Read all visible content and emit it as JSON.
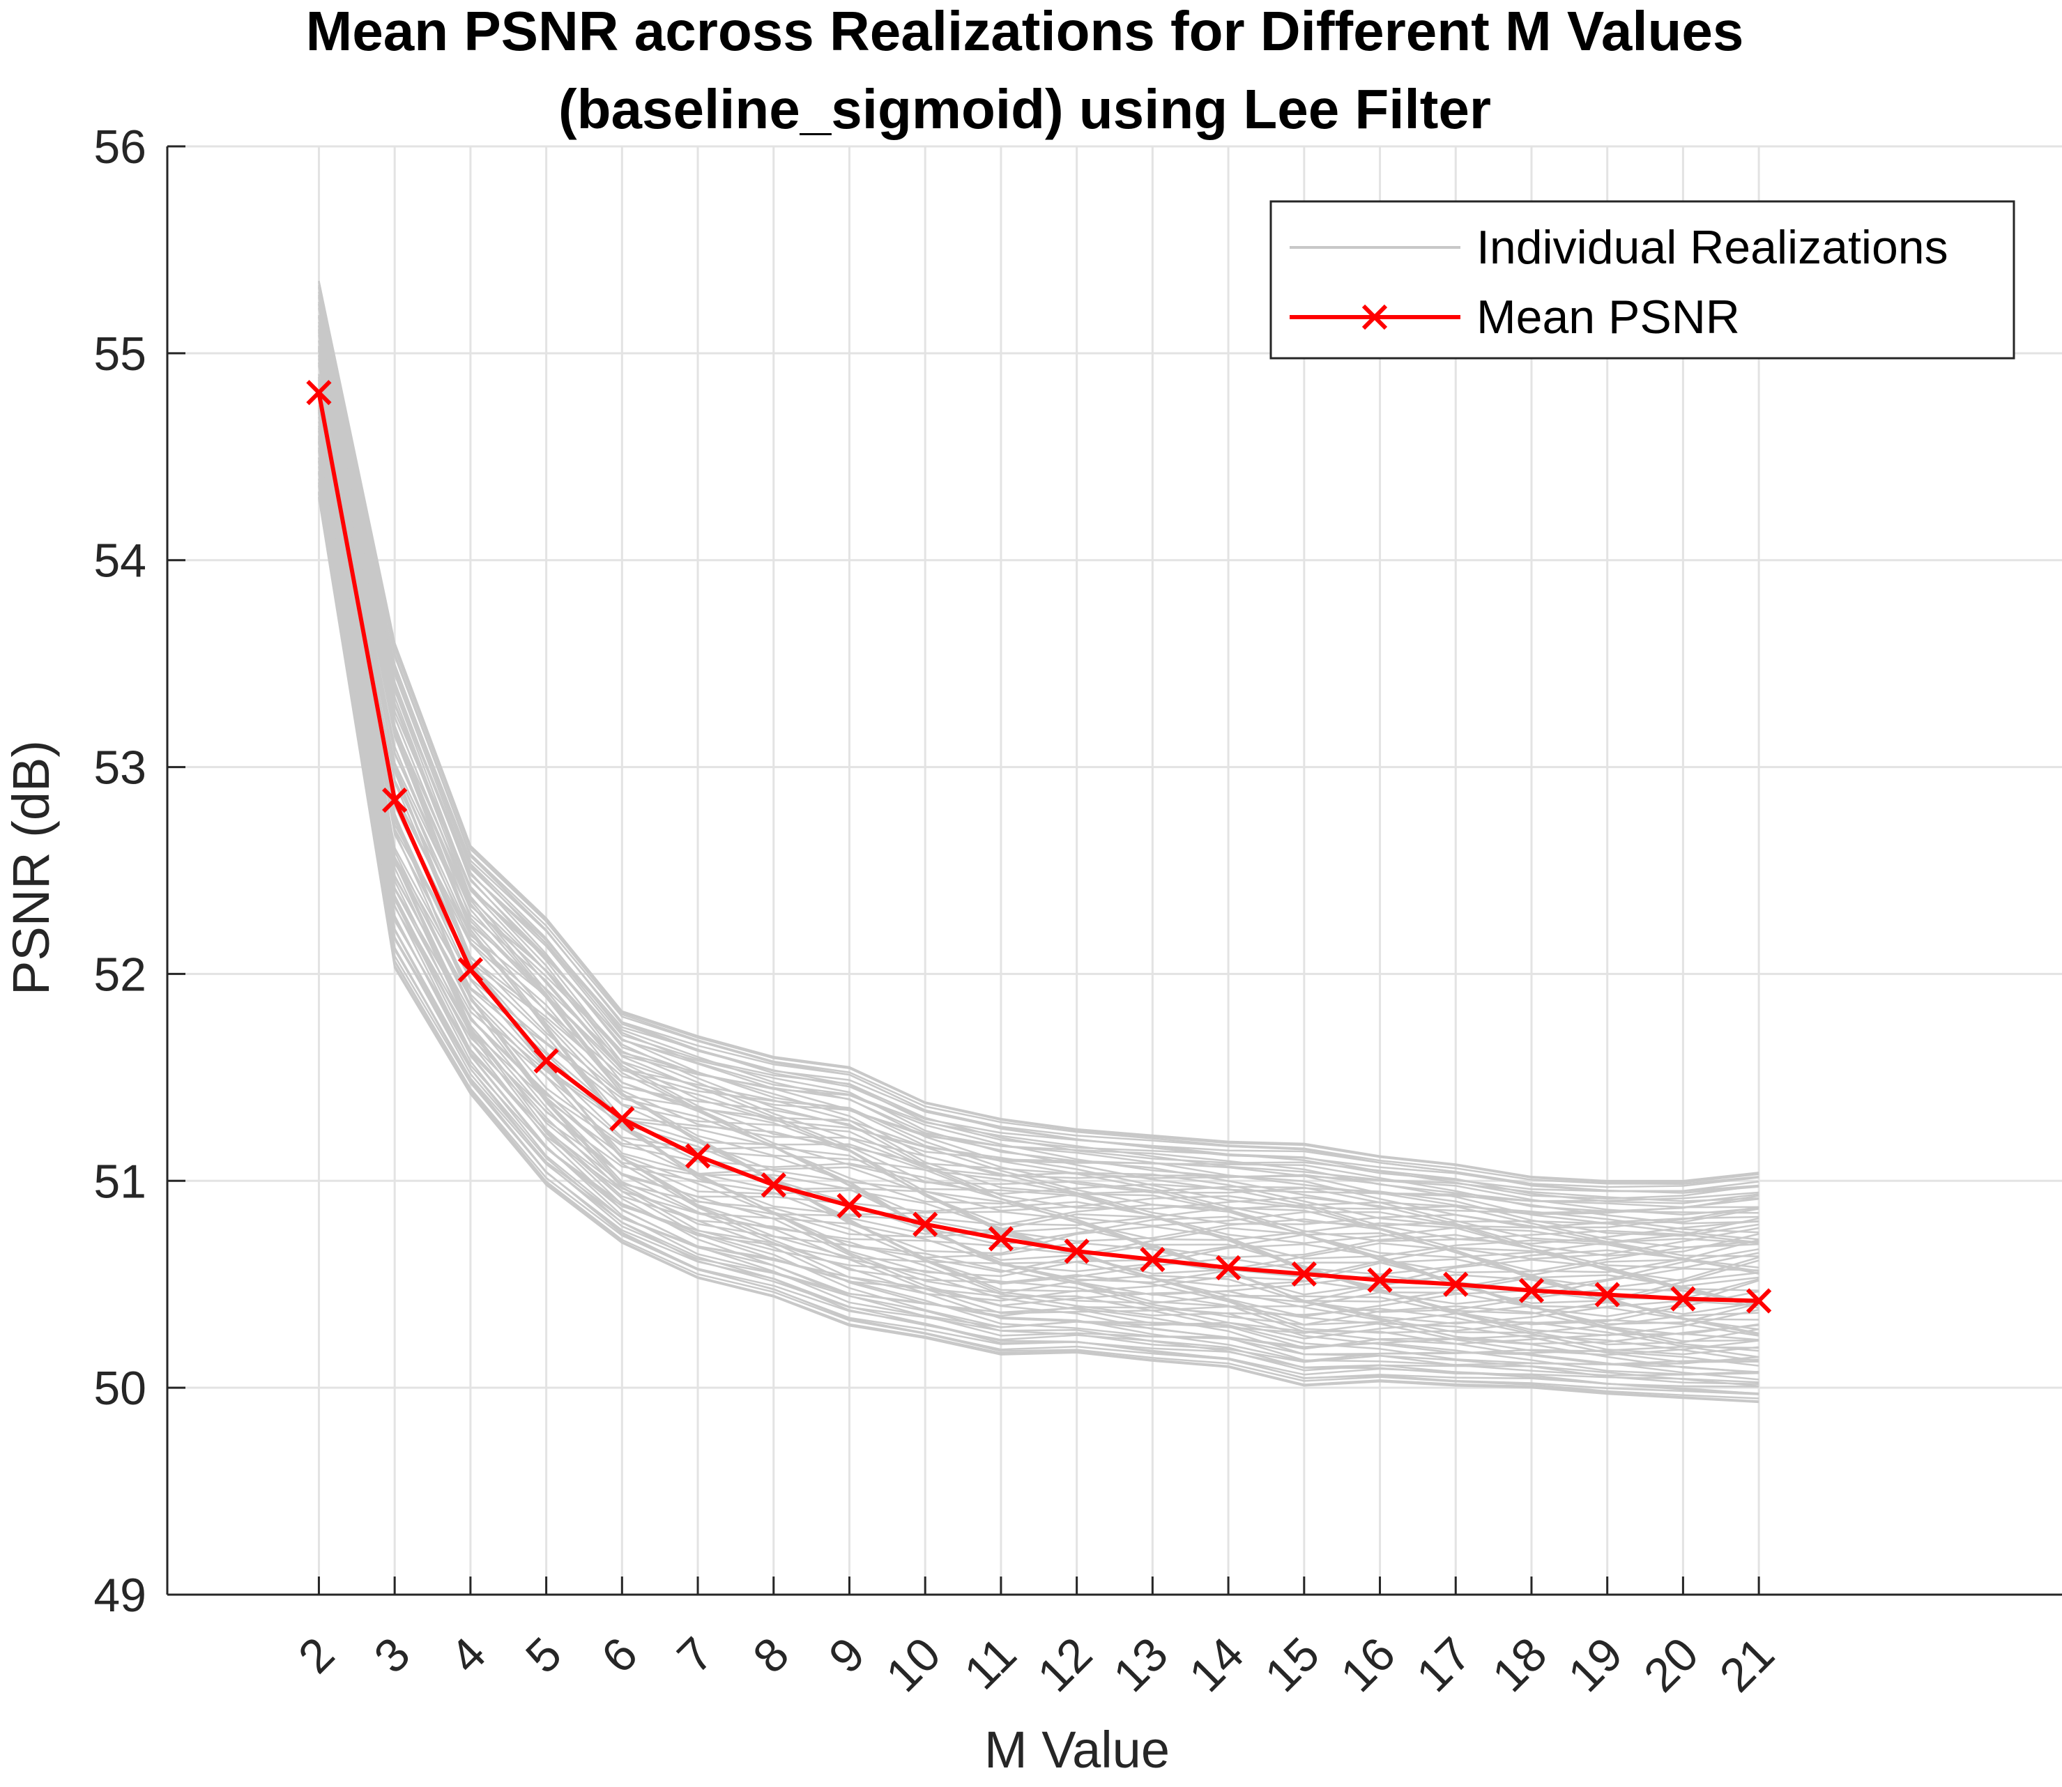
{
  "chart_data": {
    "type": "line",
    "title": [
      "Mean PSNR across Realizations for Different M Values",
      "(baseline_sigmoid) using Lee Filter"
    ],
    "xlabel": "M Value",
    "ylabel": "PSNR (dB)",
    "x": [
      2,
      3,
      4,
      5,
      6,
      7,
      8,
      9,
      10,
      11,
      12,
      13,
      14,
      15,
      16,
      17,
      18,
      19,
      20,
      21
    ],
    "x_tick_labels": [
      "2",
      "3",
      "4",
      "5",
      "6",
      "7",
      "8",
      "9",
      "10",
      "11",
      "12",
      "13",
      "14",
      "15",
      "16",
      "17",
      "18",
      "19",
      "20",
      "21"
    ],
    "xlim": [
      0,
      25
    ],
    "ylim": [
      49,
      56
    ],
    "y_ticks": [
      49,
      50,
      51,
      52,
      53,
      54,
      55,
      56
    ],
    "y_tick_labels": [
      "49",
      "50",
      "51",
      "52",
      "53",
      "54",
      "55",
      "56"
    ],
    "grid": true,
    "legend_position": "top-right",
    "series": [
      {
        "name": "Individual Realizations",
        "color": "#c8c8c8",
        "style": "band of many thin lines",
        "upper_envelope": [
          55.35,
          53.6,
          52.62,
          52.27,
          51.82,
          51.7,
          51.6,
          51.55,
          51.38,
          51.3,
          51.25,
          51.22,
          51.19,
          51.18,
          51.12,
          51.08,
          51.02,
          51.0,
          51.0,
          51.04
        ],
        "lower_envelope": [
          54.3,
          52.03,
          51.42,
          50.98,
          50.7,
          50.53,
          50.44,
          50.3,
          50.24,
          50.16,
          50.17,
          50.13,
          50.1,
          50.01,
          50.03,
          50.01,
          50.0,
          49.97,
          49.95,
          49.93
        ]
      },
      {
        "name": "Mean PSNR",
        "color": "#ff0000",
        "marker": "x",
        "values": [
          54.81,
          52.84,
          52.02,
          51.58,
          51.3,
          51.12,
          50.98,
          50.88,
          50.79,
          50.72,
          50.66,
          50.62,
          50.58,
          50.55,
          50.52,
          50.5,
          50.47,
          50.45,
          50.43,
          50.42
        ]
      }
    ]
  }
}
